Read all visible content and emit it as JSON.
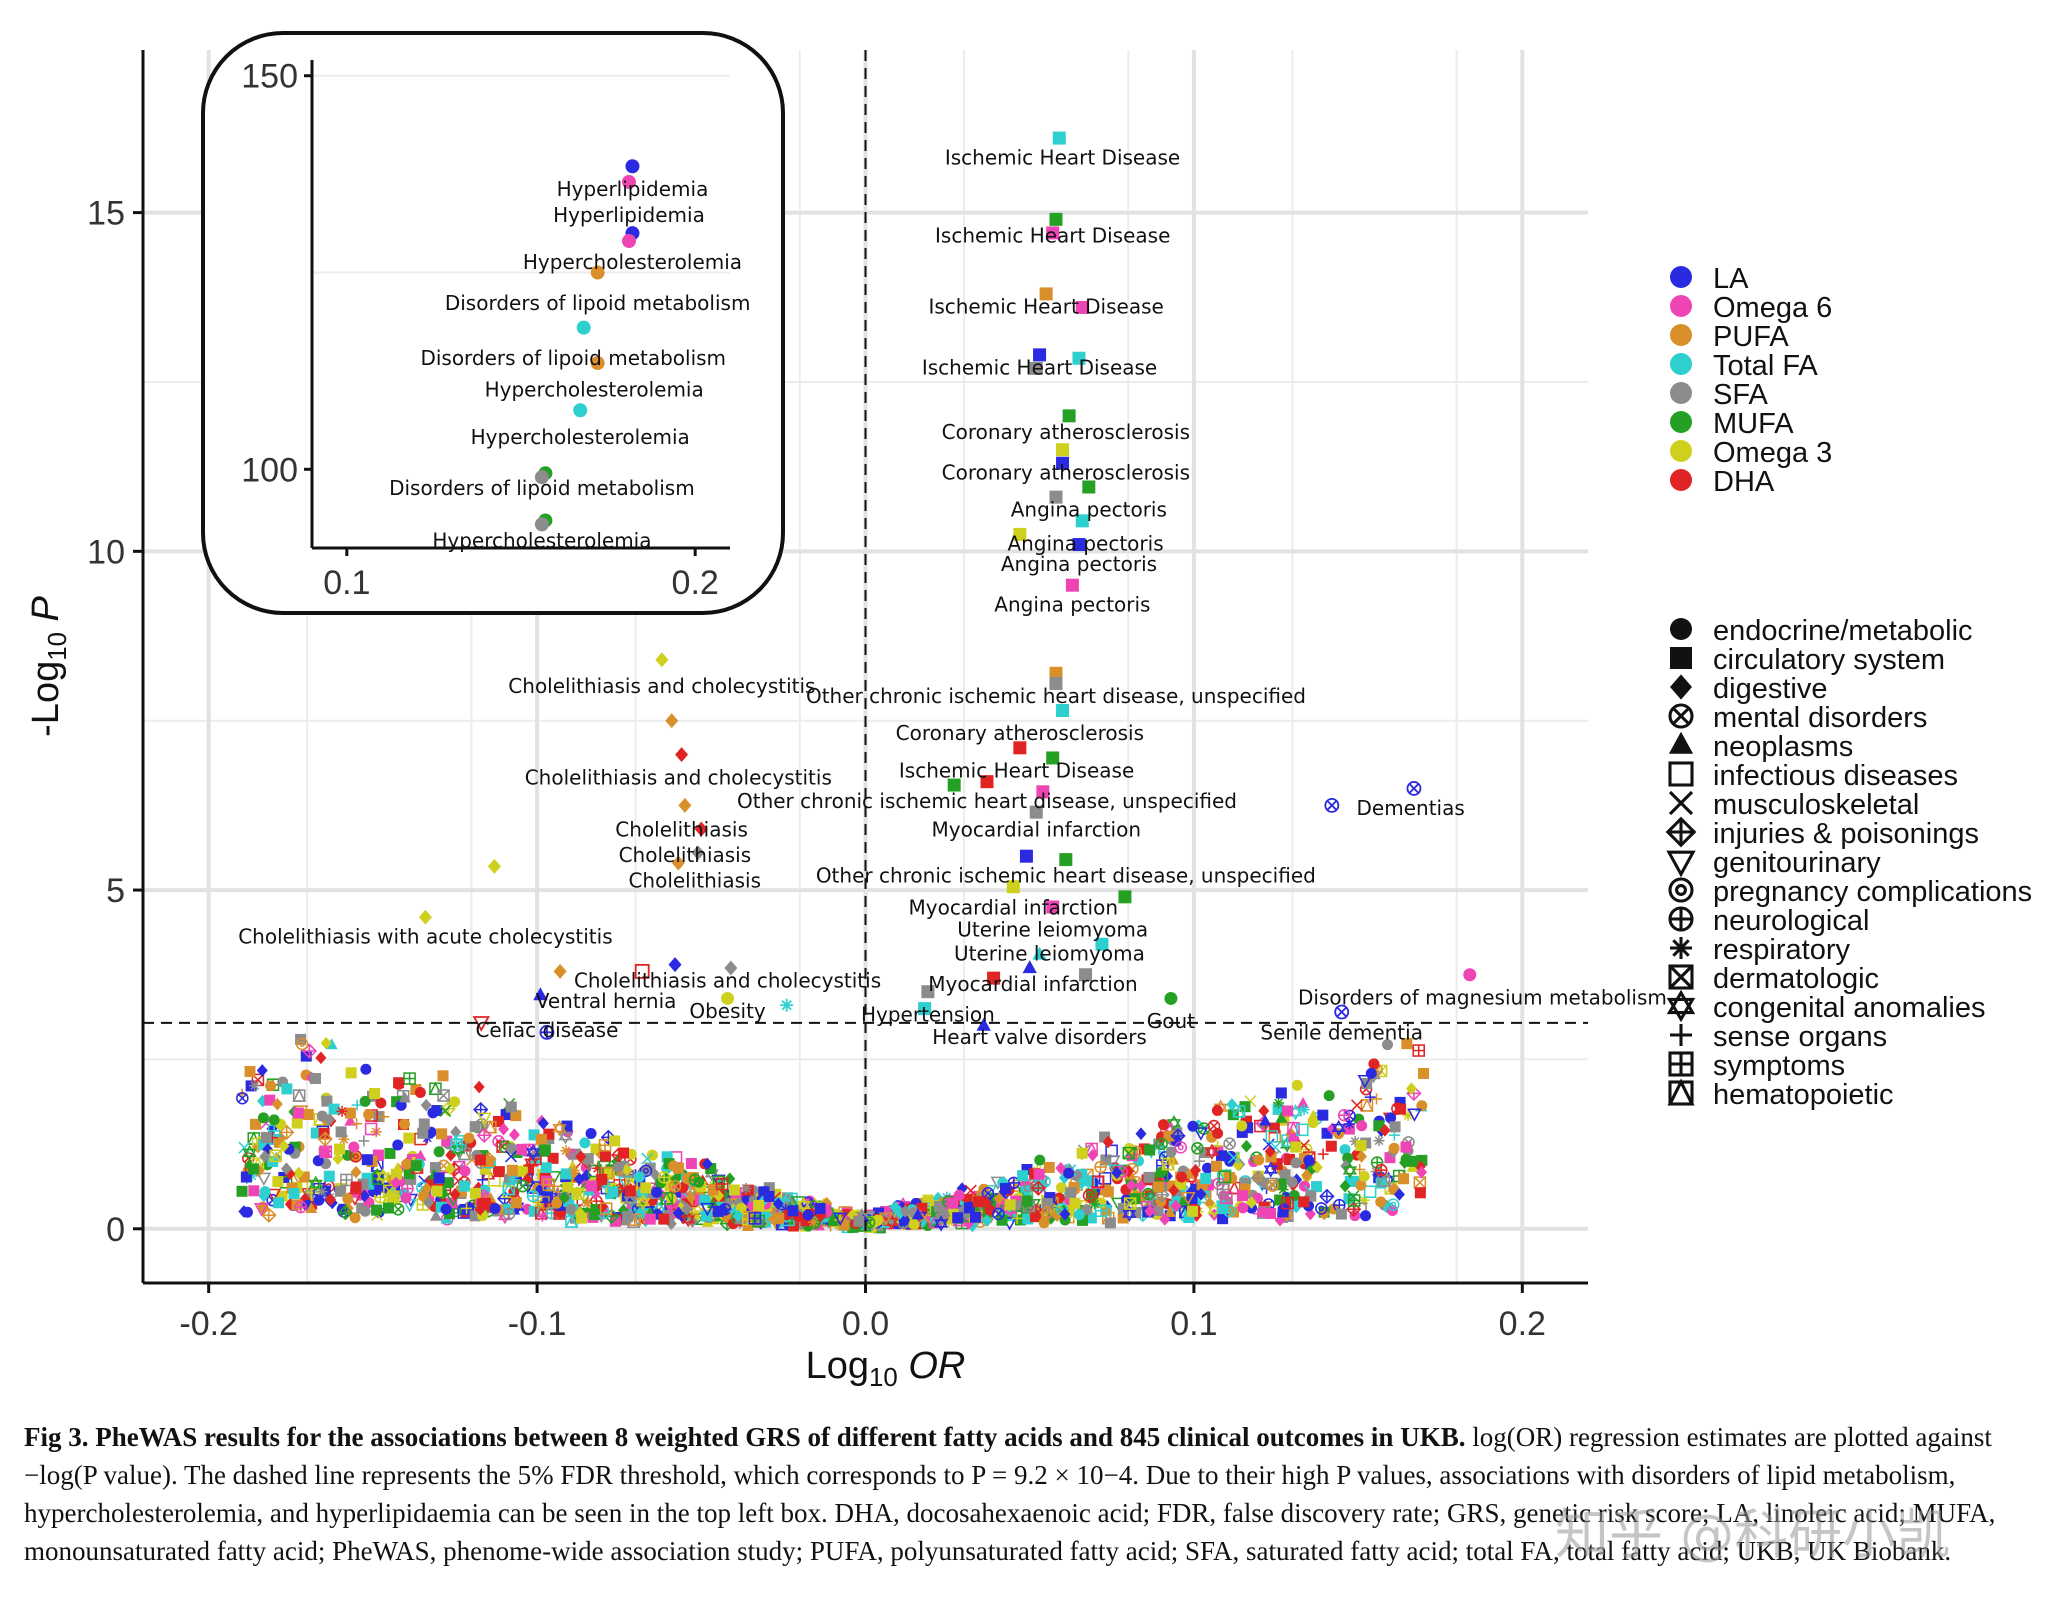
{
  "chart_data": {
    "type": "scatter",
    "xlabel": "Log10 OR",
    "ylabel": "-Log10 P",
    "xlim": [
      -0.22,
      0.22
    ],
    "ylim": [
      -0.8,
      17.4
    ],
    "xticks": [
      "-0.2",
      "-0.1",
      "0.0",
      "0.1",
      "0.2"
    ],
    "xtick_values": [
      -0.2,
      -0.1,
      0.0,
      0.1,
      0.2
    ],
    "yticks": [
      "0",
      "5",
      "10",
      "15"
    ],
    "ytick_values": [
      0,
      5,
      10,
      15
    ],
    "threshold_y": 3.04,
    "threshold_label": "5% FDR threshold",
    "legend_colors": {
      "title": "",
      "items": [
        {
          "name": "LA",
          "color": "#2a2ae0"
        },
        {
          "name": "Omega 6",
          "color": "#ee44b4"
        },
        {
          "name": "PUFA",
          "color": "#d9902a"
        },
        {
          "name": "Total FA",
          "color": "#2ecfcf"
        },
        {
          "name": "SFA",
          "color": "#8c8c8c"
        },
        {
          "name": "MUFA",
          "color": "#25a025"
        },
        {
          "name": "Omega 3",
          "color": "#cfcf1e"
        },
        {
          "name": "DHA",
          "color": "#e02424"
        }
      ]
    },
    "legend_shapes": {
      "items": [
        {
          "name": "endocrine/metabolic",
          "shape": "circle"
        },
        {
          "name": "circulatory system",
          "shape": "square"
        },
        {
          "name": "digestive",
          "shape": "diamond"
        },
        {
          "name": "mental disorders",
          "shape": "circle-x"
        },
        {
          "name": "neoplasms",
          "shape": "triangle"
        },
        {
          "name": "infectious diseases",
          "shape": "open-square"
        },
        {
          "name": "musculoskeletal",
          "shape": "x"
        },
        {
          "name": "injuries & poisonings",
          "shape": "diamond-plus"
        },
        {
          "name": "genitourinary",
          "shape": "open-triangle-down"
        },
        {
          "name": "pregnancy complications",
          "shape": "at"
        },
        {
          "name": "neurological",
          "shape": "circle-plus"
        },
        {
          "name": "respiratory",
          "shape": "asterisk"
        },
        {
          "name": "dermatologic",
          "shape": "square-x"
        },
        {
          "name": "congenital anomalies",
          "shape": "star-of-david"
        },
        {
          "name": "sense organs",
          "shape": "plus"
        },
        {
          "name": "symptoms",
          "shape": "square-plus"
        },
        {
          "name": "hematopoietic",
          "shape": "square-triangle"
        }
      ]
    },
    "labeled_points": [
      {
        "x": 0.059,
        "y": 16.1,
        "s": "Ischemic Heart Disease",
        "c": "Total FA",
        "shape": "square",
        "lx": 0.06,
        "ly": 15.8
      },
      {
        "x": 0.058,
        "y": 14.9,
        "s": "Ischemic Heart Disease",
        "c": "MUFA",
        "shape": "square",
        "lx": 0.057,
        "ly": 14.65
      },
      {
        "x": 0.057,
        "y": 14.7,
        "s": "",
        "c": "Omega 6",
        "shape": "square",
        "lx": null,
        "ly": null
      },
      {
        "x": 0.055,
        "y": 13.8,
        "s": "",
        "c": "PUFA",
        "shape": "square",
        "lx": null,
        "ly": null
      },
      {
        "x": 0.066,
        "y": 13.6,
        "s": "Ischemic Heart Disease",
        "c": "Omega 6",
        "shape": "square",
        "lx": 0.055,
        "ly": 13.6
      },
      {
        "x": 0.053,
        "y": 12.9,
        "s": "",
        "c": "LA",
        "shape": "square",
        "lx": null,
        "ly": null
      },
      {
        "x": 0.065,
        "y": 12.85,
        "s": "Ischemic Heart Disease",
        "c": "Total FA",
        "shape": "square",
        "lx": 0.053,
        "ly": 12.7
      },
      {
        "x": 0.052,
        "y": 12.7,
        "s": "",
        "c": "SFA",
        "shape": "square",
        "lx": null,
        "ly": null
      },
      {
        "x": 0.062,
        "y": 12.0,
        "s": "Coronary atherosclerosis",
        "c": "MUFA",
        "shape": "square",
        "lx": 0.061,
        "ly": 11.75
      },
      {
        "x": 0.06,
        "y": 11.5,
        "s": "",
        "c": "Omega 3",
        "shape": "square",
        "lx": null,
        "ly": null
      },
      {
        "x": 0.06,
        "y": 11.3,
        "s": "Coronary atherosclerosis",
        "c": "LA",
        "shape": "square",
        "lx": 0.061,
        "ly": 11.15
      },
      {
        "x": 0.068,
        "y": 10.95,
        "s": "",
        "c": "MUFA",
        "shape": "square",
        "lx": null,
        "ly": null
      },
      {
        "x": 0.058,
        "y": 10.8,
        "s": "Angina pectoris",
        "c": "SFA",
        "shape": "square",
        "lx": 0.068,
        "ly": 10.6
      },
      {
        "x": 0.066,
        "y": 10.45,
        "s": "",
        "c": "Total FA",
        "shape": "square",
        "lx": null,
        "ly": null
      },
      {
        "x": 0.047,
        "y": 10.25,
        "s": "Angina pectoris",
        "c": "Omega 3",
        "shape": "square",
        "lx": 0.067,
        "ly": 10.1
      },
      {
        "x": 0.065,
        "y": 10.1,
        "s": "",
        "c": "LA",
        "shape": "square",
        "lx": null,
        "ly": null
      },
      {
        "x": 0.063,
        "y": 9.5,
        "s": "Angina pectoris",
        "c": "Omega 6",
        "shape": "square",
        "lx": 0.065,
        "ly": 9.8
      },
      {
        "x": 0.058,
        "y": 8.2,
        "s": "Angina pectoris",
        "c": "PUFA",
        "shape": "square",
        "lx": 0.063,
        "ly": 9.2
      },
      {
        "x": 0.058,
        "y": 8.05,
        "s": "",
        "c": "SFA",
        "shape": "square",
        "lx": null,
        "ly": null
      },
      {
        "x": 0.06,
        "y": 7.65,
        "s": "Other chronic ischemic heart disease, unspecified",
        "c": "Total FA",
        "shape": "square",
        "lx": 0.058,
        "ly": 7.85
      },
      {
        "x": 0.047,
        "y": 7.1,
        "s": "",
        "c": "DHA",
        "shape": "square",
        "lx": null,
        "ly": null
      },
      {
        "x": 0.057,
        "y": 6.95,
        "s": "Coronary atherosclerosis",
        "c": "MUFA",
        "shape": "square",
        "lx": 0.047,
        "ly": 7.3
      },
      {
        "x": 0.037,
        "y": 6.6,
        "s": "Ischemic Heart Disease",
        "c": "DHA",
        "shape": "square",
        "lx": 0.046,
        "ly": 6.75
      },
      {
        "x": 0.027,
        "y": 6.55,
        "s": "",
        "c": "MUFA",
        "shape": "square",
        "lx": null,
        "ly": null
      },
      {
        "x": 0.054,
        "y": 6.45,
        "s": "",
        "c": "Omega 6",
        "shape": "square",
        "lx": null,
        "ly": null
      },
      {
        "x": 0.052,
        "y": 6.15,
        "s": "Other chronic ischemic heart disease, unspecified",
        "c": "SFA",
        "shape": "square",
        "lx": 0.037,
        "ly": 6.3
      },
      {
        "x": 0.049,
        "y": 5.5,
        "s": "",
        "c": "LA",
        "shape": "square",
        "lx": null,
        "ly": null
      },
      {
        "x": 0.061,
        "y": 5.45,
        "s": "Myocardial infarction",
        "c": "MUFA",
        "shape": "square",
        "lx": 0.052,
        "ly": 5.88
      },
      {
        "x": 0.045,
        "y": 5.05,
        "s": "",
        "c": "Omega 3",
        "shape": "square",
        "lx": null,
        "ly": null
      },
      {
        "x": 0.079,
        "y": 4.9,
        "s": "Other chronic ischemic heart disease, unspecified",
        "c": "MUFA",
        "shape": "square",
        "lx": 0.061,
        "ly": 5.2
      },
      {
        "x": 0.057,
        "y": 4.75,
        "s": "",
        "c": "Omega 6",
        "shape": "square",
        "lx": null,
        "ly": null
      },
      {
        "x": 0.072,
        "y": 4.2,
        "s": "Myocardial infarction",
        "c": "Total FA",
        "shape": "square",
        "lx": 0.045,
        "ly": 4.73
      },
      {
        "x": 0.053,
        "y": 4.05,
        "s": "Uterine leiomyoma",
        "c": "Total FA",
        "shape": "triangle",
        "lx": 0.057,
        "ly": 4.4
      },
      {
        "x": 0.05,
        "y": 3.85,
        "s": "Uterine leiomyoma",
        "c": "LA",
        "shape": "triangle",
        "lx": 0.056,
        "ly": 4.05
      },
      {
        "x": 0.067,
        "y": 3.75,
        "s": "",
        "c": "SFA",
        "shape": "square",
        "lx": null,
        "ly": null
      },
      {
        "x": 0.039,
        "y": 3.7,
        "s": "Myocardial infarction",
        "c": "DHA",
        "shape": "square",
        "lx": 0.051,
        "ly": 3.6
      },
      {
        "x": 0.019,
        "y": 3.5,
        "s": "",
        "c": "SFA",
        "shape": "square",
        "lx": null,
        "ly": null
      },
      {
        "x": 0.093,
        "y": 3.4,
        "s": "Gout",
        "c": "MUFA",
        "shape": "circle",
        "lx": 0.093,
        "ly": 3.05
      },
      {
        "x": 0.018,
        "y": 3.25,
        "s": "Hypertension",
        "c": "Total FA",
        "shape": "square",
        "lx": 0.019,
        "ly": 3.15
      },
      {
        "x": 0.036,
        "y": 3.0,
        "s": "Heart valve disorders",
        "c": "LA",
        "shape": "triangle",
        "lx": 0.053,
        "ly": 2.82
      },
      {
        "x": 0.184,
        "y": 3.75,
        "s": "Disorders of magnesium metabolism",
        "c": "Omega 6",
        "shape": "circle",
        "lx": 0.184,
        "ly": 3.4
      },
      {
        "x": 0.145,
        "y": 3.2,
        "s": "Senile dementia",
        "c": "LA",
        "shape": "circle-x",
        "lx": 0.145,
        "ly": 2.88
      },
      {
        "x": 0.142,
        "y": 6.25,
        "s": "",
        "c": "LA",
        "shape": "circle-x",
        "lx": null,
        "ly": null
      },
      {
        "x": 0.167,
        "y": 6.5,
        "s": "Dementias",
        "c": "LA",
        "shape": "circle-x",
        "lx": 0.166,
        "ly": 6.2
      },
      {
        "x": -0.062,
        "y": 8.4,
        "s": "Cholelithiasis and cholecystitis",
        "c": "Omega 3",
        "shape": "diamond",
        "lx": -0.062,
        "ly": 8.0
      },
      {
        "x": -0.059,
        "y": 7.5,
        "s": "",
        "c": "PUFA",
        "shape": "diamond",
        "lx": null,
        "ly": null
      },
      {
        "x": -0.056,
        "y": 7.0,
        "s": "Cholelithiasis and cholecystitis",
        "c": "DHA",
        "shape": "diamond",
        "lx": -0.057,
        "ly": 6.65
      },
      {
        "x": -0.055,
        "y": 6.25,
        "s": "",
        "c": "PUFA",
        "shape": "diamond",
        "lx": null,
        "ly": null
      },
      {
        "x": -0.05,
        "y": 5.9,
        "s": "Cholelithiasis",
        "c": "DHA",
        "shape": "diamond",
        "lx": -0.056,
        "ly": 5.88
      },
      {
        "x": -0.051,
        "y": 5.55,
        "s": "Cholelithiasis",
        "c": "SFA",
        "shape": "diamond",
        "lx": -0.055,
        "ly": 5.5
      },
      {
        "x": -0.057,
        "y": 5.4,
        "s": "Cholelithiasis",
        "c": "PUFA",
        "shape": "diamond",
        "lx": -0.052,
        "ly": 5.13
      },
      {
        "x": -0.113,
        "y": 5.35,
        "s": "",
        "c": "Omega 3",
        "shape": "diamond",
        "lx": null,
        "ly": null
      },
      {
        "x": -0.134,
        "y": 4.6,
        "s": "Cholelithiasis with acute cholecystitis",
        "c": "Omega 3",
        "shape": "diamond",
        "lx": -0.134,
        "ly": 4.3
      },
      {
        "x": -0.093,
        "y": 3.8,
        "s": "Cholelithiasis and cholecystitis",
        "c": "PUFA",
        "shape": "diamond",
        "lx": -0.042,
        "ly": 3.65
      },
      {
        "x": -0.068,
        "y": 3.8,
        "s": "",
        "c": "DHA",
        "shape": "open-square",
        "lx": null,
        "ly": null
      },
      {
        "x": -0.058,
        "y": 3.9,
        "s": "",
        "c": "LA",
        "shape": "diamond",
        "lx": null,
        "ly": null
      },
      {
        "x": -0.041,
        "y": 3.85,
        "s": "",
        "c": "SFA",
        "shape": "diamond",
        "lx": null,
        "ly": null
      },
      {
        "x": -0.099,
        "y": 3.45,
        "s": "Ventral hernia",
        "c": "LA",
        "shape": "triangle",
        "lx": -0.079,
        "ly": 3.35
      },
      {
        "x": -0.042,
        "y": 3.4,
        "s": "Obesity",
        "c": "Omega 3",
        "shape": "circle",
        "lx": -0.042,
        "ly": 3.2
      },
      {
        "x": -0.024,
        "y": 3.3,
        "s": "",
        "c": "Total FA",
        "shape": "asterisk",
        "lx": null,
        "ly": null
      },
      {
        "x": -0.117,
        "y": 3.05,
        "s": "Celiac disease",
        "c": "DHA",
        "shape": "open-triangle-down",
        "lx": -0.097,
        "ly": 2.92
      },
      {
        "x": -0.097,
        "y": 2.9,
        "s": "",
        "c": "LA",
        "shape": "circle-plus",
        "lx": null,
        "ly": null
      }
    ],
    "inset": {
      "xlim": [
        0.09,
        0.21
      ],
      "ylim": [
        90,
        152
      ],
      "xticks": [
        "0.1",
        "0.2"
      ],
      "xtick_values": [
        0.1,
        0.2
      ],
      "yticks": [
        "150",
        "100"
      ],
      "ytick_values": [
        150,
        100
      ],
      "points": [
        {
          "x": 0.182,
          "y": 138.5,
          "s": "Hyperlipidemia",
          "c": "LA",
          "lx": 0.182,
          "ly": 135.5
        },
        {
          "x": 0.181,
          "y": 136.5,
          "s": "Hyperlipidemia",
          "c": "Omega 6",
          "lx": 0.181,
          "ly": 132.2
        },
        {
          "x": 0.182,
          "y": 130.0,
          "s": "Hypercholesterolemia",
          "c": "LA",
          "lx": 0.182,
          "ly": 126.2
        },
        {
          "x": 0.181,
          "y": 129.0,
          "s": "",
          "c": "Omega 6",
          "lx": null,
          "ly": null
        },
        {
          "x": 0.172,
          "y": 125.0,
          "s": "Disorders of lipoid metabolism",
          "c": "PUFA",
          "lx": 0.172,
          "ly": 121.0
        },
        {
          "x": 0.168,
          "y": 118.0,
          "s": "Disorders of lipoid metabolism",
          "c": "Total FA",
          "lx": 0.165,
          "ly": 114.0
        },
        {
          "x": 0.172,
          "y": 113.5,
          "s": "Hypercholesterolemia",
          "c": "PUFA",
          "lx": 0.171,
          "ly": 110.0
        },
        {
          "x": 0.167,
          "y": 107.5,
          "s": "Hypercholesterolemia",
          "c": "Total FA",
          "lx": 0.167,
          "ly": 104.0
        },
        {
          "x": 0.157,
          "y": 99.5,
          "s": "Disorders of lipoid metabolism",
          "c": "MUFA",
          "lx": 0.156,
          "ly": 97.5
        },
        {
          "x": 0.156,
          "y": 99.0,
          "s": "",
          "c": "SFA",
          "lx": null,
          "ly": null
        },
        {
          "x": 0.157,
          "y": 93.5,
          "s": "Hypercholesterolemia",
          "c": "MUFA",
          "lx": 0.156,
          "ly": 90.8
        },
        {
          "x": 0.156,
          "y": 93.0,
          "s": "",
          "c": "SFA",
          "lx": null,
          "ly": null
        }
      ]
    }
  },
  "caption": {
    "bold": "Fig 3. PheWAS results for the associations between 8 weighted GRS of different fatty acids and 845 clinical outcomes in UKB.",
    "text": " log(OR) regression estimates are plotted against −log(P value). The dashed line represents the 5% FDR threshold, which corresponds to P = 9.2 × 10−4. Due to their high P values, associations with disorders of lipid metabolism, hypercholesterolemia, and hyperlipidaemia can be seen in the top left box. DHA, docosahexaenoic acid; FDR, false discovery rate; GRS, genetic risk score; LA, linoleic acid; MUFA, monounsaturated fatty acid; PheWAS, phenome-wide association study; PUFA, polyunsaturated fatty acid; SFA, saturated fatty acid; total FA, total fatty acid; UKB, UK Biobank."
  },
  "watermark": "知乎 @科研小凯"
}
